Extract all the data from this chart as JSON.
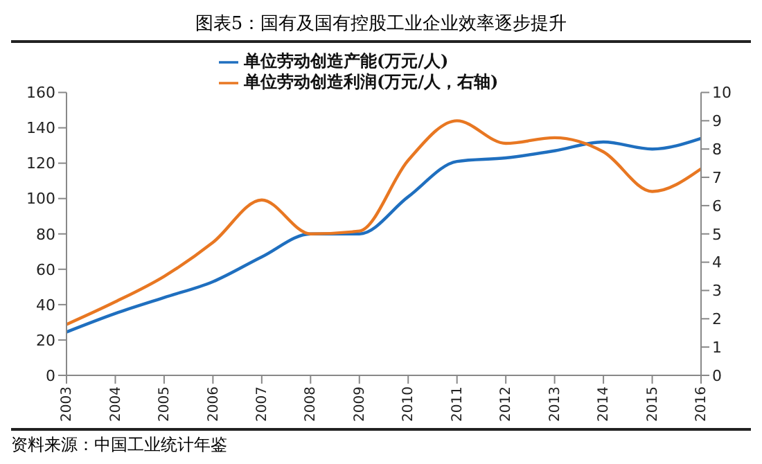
{
  "chart_data": {
    "type": "line",
    "title": "图表5：国有及国有控股工业企业效率逐步提升",
    "categories": [
      "2003",
      "2004",
      "2005",
      "2006",
      "2007",
      "2008",
      "2009",
      "2010",
      "2011",
      "2012",
      "2013",
      "2014",
      "2015",
      "2016"
    ],
    "series": [
      {
        "name": "单位劳动创造产能(万元/人)",
        "color": "#1f6fbf",
        "values": [
          24.5,
          35,
          44,
          53,
          67,
          80,
          80,
          101,
          121,
          123,
          127,
          132,
          128,
          134
        ]
      },
      {
        "name": "单位劳动创造利润(万元/人，右轴)",
        "color": "#e87722",
        "axis": "y2",
        "values": [
          1.8,
          2.6,
          3.5,
          4.7,
          6.2,
          5.0,
          5.1,
          7.6,
          9.0,
          8.2,
          8.4,
          7.9,
          6.5,
          7.3
        ]
      }
    ],
    "ylim": [
      0,
      160
    ],
    "yticks": [
      0,
      20,
      40,
      60,
      80,
      100,
      120,
      140,
      160
    ],
    "y2lim": [
      0,
      10
    ],
    "y2ticks": [
      0,
      1,
      2,
      3,
      4,
      5,
      6,
      7,
      8,
      9,
      10
    ],
    "grid": false,
    "legend": "top",
    "marker": "none",
    "line_style": "solid",
    "annotations": [
      "资料来源：中国工业统计年鉴"
    ]
  }
}
